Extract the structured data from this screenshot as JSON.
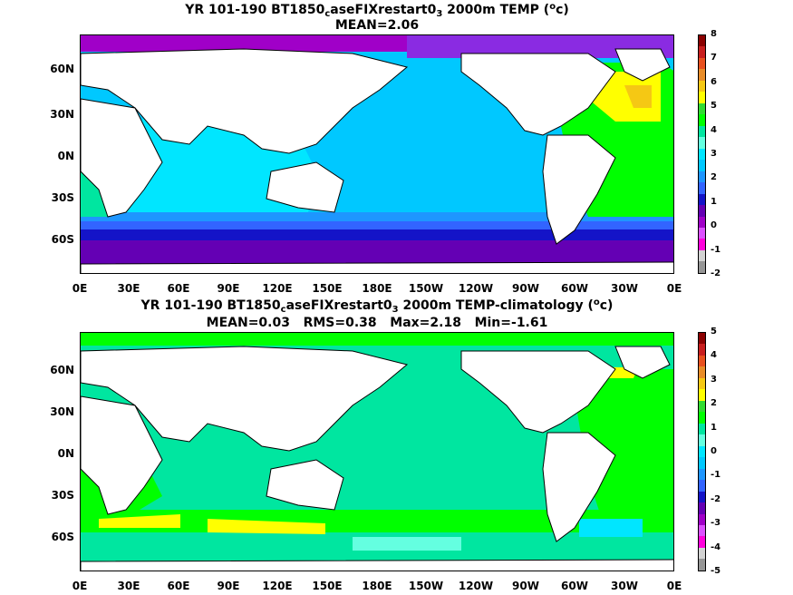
{
  "top": {
    "title_prefix": "YR 101-190 BT1850",
    "title_sub": "c",
    "title_mid": "aseFIXrestart0",
    "title_sub2": "3",
    "title_suffix": " 2000m TEMP (",
    "title_sup": "o",
    "title_end": "c)",
    "stats": "MEAN=2.06",
    "colorbar_labels": [
      "8",
      "7",
      "6",
      "5",
      "4",
      "3",
      "2",
      "1",
      "0",
      "-1",
      "-2"
    ],
    "colorbar_colors": [
      "#8b0000",
      "#c81e1e",
      "#e8501e",
      "#e88c28",
      "#f5c814",
      "#ffff00",
      "#32dc32",
      "#00ff00",
      "#00e6a0",
      "#64ffe0",
      "#00e6ff",
      "#00c8ff",
      "#1e96ff",
      "#3264ff",
      "#1414c8",
      "#6400b4",
      "#a000c8",
      "#dc50ff",
      "#ff00dc",
      "#d2d2d2",
      "#969696"
    ]
  },
  "bottom": {
    "title_prefix": "YR 101-190 BT1850",
    "title_sub": "c",
    "title_mid": "aseFIXrestart0",
    "title_sub2": "3",
    "title_suffix": " 2000m TEMP-climatology (",
    "title_sup": "o",
    "title_end": "c)",
    "stats": "MEAN=0.03   RMS=0.38   Max=2.18   Min=-1.61",
    "colorbar_labels": [
      "5",
      "4",
      "3",
      "2",
      "1",
      "0",
      "-1",
      "-2",
      "-3",
      "-4",
      "-5"
    ],
    "colorbar_colors": [
      "#8b0000",
      "#c81e1e",
      "#e8501e",
      "#e88c28",
      "#f5c814",
      "#ffff00",
      "#32dc32",
      "#00ff00",
      "#00e6a0",
      "#64ffe0",
      "#00e6ff",
      "#00c8ff",
      "#1e96ff",
      "#3264ff",
      "#1414c8",
      "#6400b4",
      "#a000c8",
      "#dc50ff",
      "#ff00dc",
      "#d2d2d2",
      "#969696"
    ]
  },
  "axes": {
    "lat_labels": [
      "60N",
      "30N",
      "0N",
      "30S",
      "60S"
    ],
    "lon_labels": [
      "0E",
      "30E",
      "60E",
      "90E",
      "120E",
      "150E",
      "180E",
      "150W",
      "120W",
      "90W",
      "60W",
      "30W",
      "0E"
    ]
  }
}
